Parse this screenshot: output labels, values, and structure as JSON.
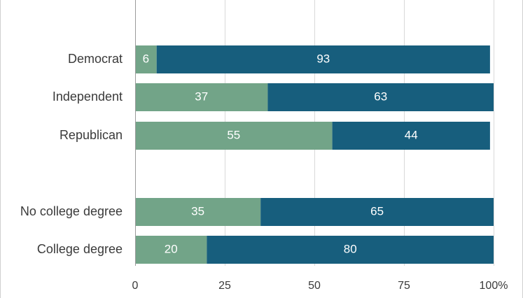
{
  "chart_data": {
    "type": "bar",
    "orientation": "horizontal",
    "stacked": true,
    "categories": [
      "Democrat",
      "Independent",
      "Republican",
      "No college degree",
      "College degree"
    ],
    "series": [
      {
        "values": [
          6,
          37,
          55,
          35,
          20
        ],
        "color": "#72a488"
      },
      {
        "values": [
          93,
          63,
          44,
          65,
          80
        ],
        "color": "#175e7d"
      }
    ],
    "data_labels": [
      [
        "6",
        "37",
        "55",
        "35",
        "20"
      ],
      [
        "93",
        "63",
        "44",
        "65",
        "80"
      ]
    ],
    "x_ticks": [
      "0",
      "25",
      "50",
      "75",
      "100%"
    ],
    "x_tick_values": [
      0,
      25,
      50,
      75,
      100
    ],
    "xlim": [
      0,
      100
    ],
    "title": "",
    "xlabel": "",
    "ylabel": "",
    "grid": true,
    "legend": "none"
  }
}
